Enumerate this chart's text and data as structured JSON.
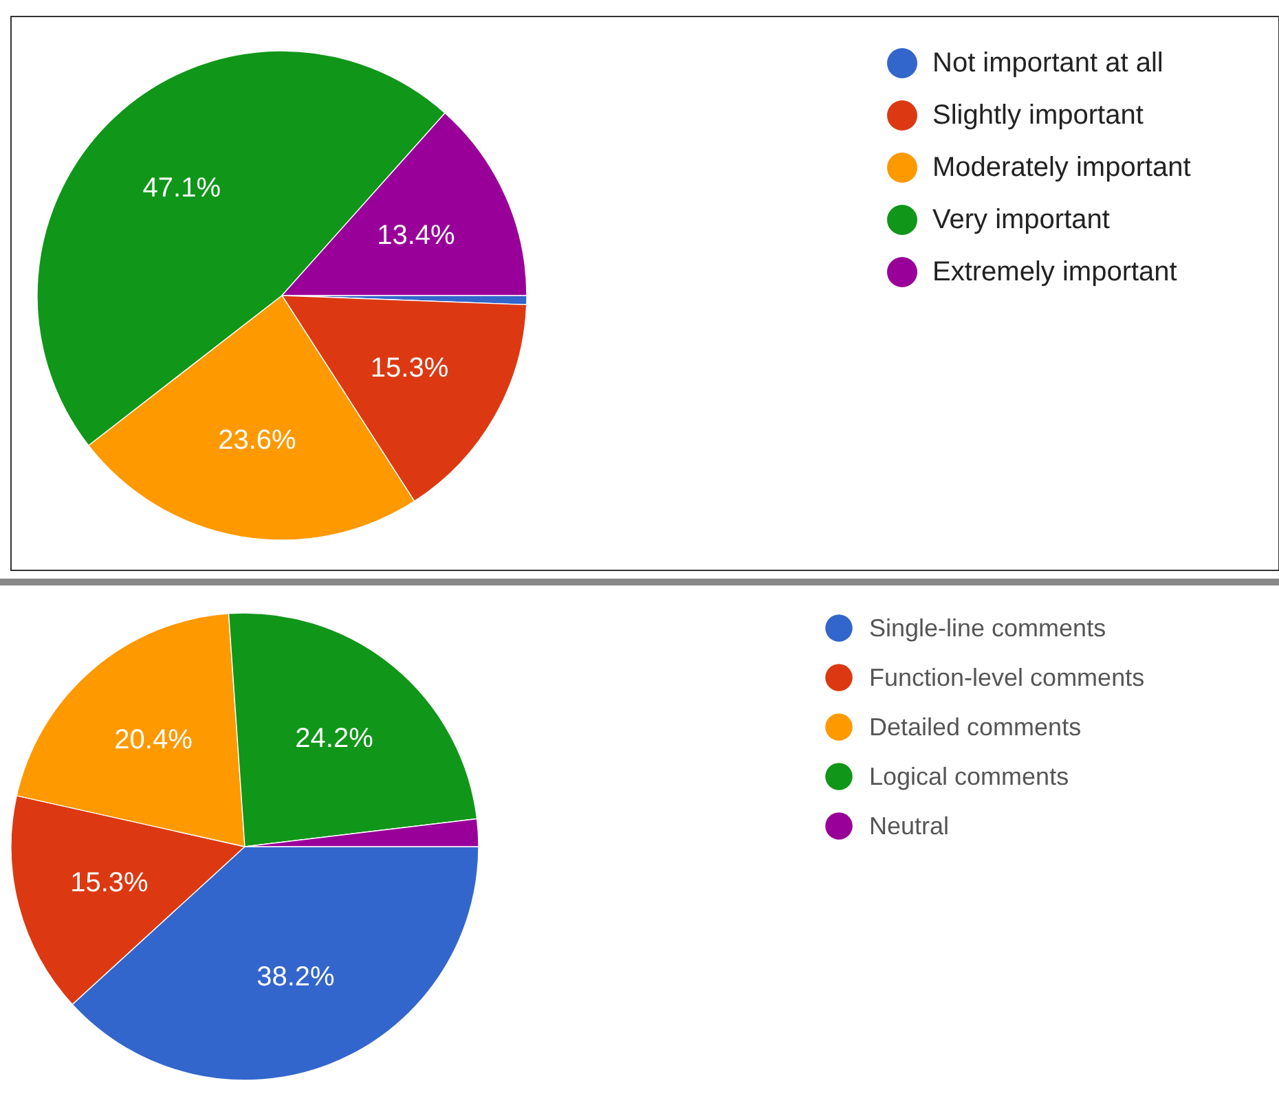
{
  "chart_data": [
    {
      "type": "pie",
      "categories": [
        "Not important at all",
        "Slightly important",
        "Moderately important",
        "Very important",
        "Extremely important"
      ],
      "values": [
        0.6,
        15.3,
        23.6,
        47.1,
        13.4
      ],
      "colors": [
        "#3366cc",
        "#dc3912",
        "#ff9900",
        "#109618",
        "#990099"
      ],
      "value_labels": [
        null,
        "15.3%",
        "23.6%",
        "47.1%",
        "13.4%"
      ],
      "legend": "right"
    },
    {
      "type": "pie",
      "categories": [
        "Single-line comments",
        "Function-level comments",
        "Detailed comments",
        "Logical comments",
        "Neutral"
      ],
      "values": [
        38.2,
        15.3,
        20.4,
        24.2,
        1.9
      ],
      "colors": [
        "#3366cc",
        "#dc3912",
        "#ff9900",
        "#109618",
        "#990099"
      ],
      "value_labels": [
        "38.2%",
        "15.3%",
        "20.4%",
        "24.2%",
        null
      ],
      "legend": "right"
    }
  ]
}
